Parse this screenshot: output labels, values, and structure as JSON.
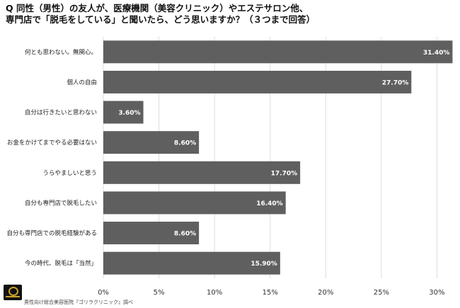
{
  "title_lines": [
    "Q 同性（男性）の友人が、医療機関（美容クリニック）やエステサロン他、",
    "専門店で「脱毛をしている」と聞いたら、どう思いますか？（３つまで回答）"
  ],
  "source": "男性向け総合美容医院『ゴリラクリニック』調べ",
  "colors": {
    "bar": "#5f5f5f",
    "grid": "#dddddd",
    "background": "#ffffff"
  },
  "chart_data": {
    "type": "bar",
    "orientation": "horizontal",
    "title": "Q 同性（男性）の友人が、医療機関（美容クリニック）やエステサロン他、専門店で「脱毛をしている」と聞いたら、どう思いますか？（３つまで回答）",
    "categories": [
      "何とも思わない。無関心。",
      "個人の自由",
      "自分は行きたいと思わない",
      "お金をかけてまでやる必要はない",
      "うらやましいと思う",
      "自分も専門店で脱毛したい",
      "自分も専門店での脱毛経験がある",
      "今の時代、脱毛は「当然」"
    ],
    "values": [
      31.4,
      27.7,
      3.6,
      8.6,
      17.7,
      16.4,
      8.6,
      15.9
    ],
    "value_labels": [
      "31.40%",
      "27.70%",
      "3.60%",
      "8.60%",
      "17.70%",
      "16.40%",
      "8.60%",
      "15.90%"
    ],
    "xlim": [
      0,
      31.5
    ],
    "xticks": [
      0,
      5,
      10,
      15,
      20,
      25,
      30
    ],
    "xtick_labels": [
      "0%",
      "5%",
      "10%",
      "15%",
      "20%",
      "25%",
      "30%"
    ],
    "grid": true,
    "xlabel": "",
    "ylabel": ""
  }
}
